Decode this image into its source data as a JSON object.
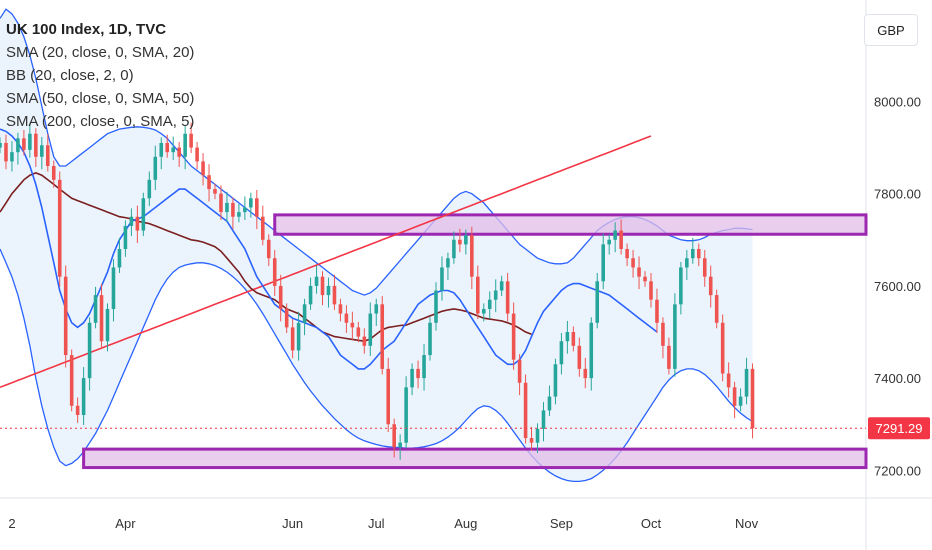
{
  "legend": {
    "title": "UK 100 Index, 1D, TVC",
    "lines": [
      "SMA (20, close, 0, SMA, 20)",
      "BB (20, close, 2, 0)",
      "SMA (50, close, 0, SMA, 50)",
      "SMA (200, close, 0, SMA, 5)"
    ]
  },
  "currency_button": "GBP",
  "chart_data": {
    "type": "candlestick",
    "title": "UK 100 Index, 1D, TVC",
    "ylim": [
      7140,
      8220
    ],
    "y_ticks": [
      {
        "value": 8000,
        "label": "8000.00"
      },
      {
        "value": 7800,
        "label": "7800.00"
      },
      {
        "value": 7600,
        "label": "7600.00"
      },
      {
        "value": 7400,
        "label": "7400.00"
      },
      {
        "value": 7200,
        "label": "7200.00"
      }
    ],
    "x_ticks": [
      {
        "label": "2",
        "index": 2
      },
      {
        "label": "Apr",
        "index": 21
      },
      {
        "label": "Jun",
        "index": 49
      },
      {
        "label": "Jul",
        "index": 63
      },
      {
        "label": "Aug",
        "index": 78
      },
      {
        "label": "Sep",
        "index": 94
      },
      {
        "label": "Oct",
        "index": 109
      },
      {
        "label": "Nov",
        "index": 125
      }
    ],
    "x_range": [
      0,
      145
    ],
    "last_price": {
      "value": 7291.29,
      "label": "7291.29",
      "color": "#f23645"
    },
    "colors": {
      "up": "#26a69a",
      "down": "#ef5350",
      "sma20": "#2962ff",
      "sma50": "#7b1f1f",
      "sma200": "#f23645",
      "bb": "#2962ff",
      "bb_fill": "#e3f0fc",
      "zone": "#9c27b0",
      "zone_fill": "#e1bee7"
    },
    "zones": [
      {
        "x_start": 46,
        "y_low": 7712,
        "y_high": 7754
      },
      {
        "x_start": 14,
        "y_low": 7206,
        "y_high": 7246
      }
    ],
    "close": [
      7910,
      7870,
      7890,
      7920,
      7895,
      7930,
      7880,
      7905,
      7860,
      7830,
      7620,
      7450,
      7340,
      7320,
      7400,
      7520,
      7580,
      7480,
      7550,
      7640,
      7680,
      7730,
      7750,
      7720,
      7790,
      7830,
      7880,
      7910,
      7890,
      7900,
      7880,
      7930,
      7900,
      7870,
      7840,
      7810,
      7800,
      7760,
      7780,
      7750,
      7760,
      7770,
      7790,
      7750,
      7700,
      7660,
      7600,
      7550,
      7510,
      7460,
      7520,
      7560,
      7600,
      7620,
      7580,
      7600,
      7560,
      7540,
      7520,
      7510,
      7490,
      7470,
      7540,
      7560,
      7420,
      7300,
      7250,
      7260,
      7380,
      7420,
      7400,
      7450,
      7520,
      7590,
      7640,
      7660,
      7700,
      7690,
      7710,
      7620,
      7540,
      7550,
      7570,
      7590,
      7610,
      7540,
      7440,
      7390,
      7270,
      7260,
      7290,
      7330,
      7360,
      7430,
      7480,
      7500,
      7470,
      7420,
      7400,
      7520,
      7610,
      7690,
      7700,
      7720,
      7680,
      7660,
      7640,
      7620,
      7610,
      7570,
      7520,
      7470,
      7420,
      7560,
      7640,
      7660,
      7680,
      7660,
      7620,
      7580,
      7520,
      7410,
      7380,
      7340,
      7360,
      7420,
      7291.29
    ],
    "sma20": [
      7940,
      7935,
      7925,
      7910,
      7890,
      7860,
      7820,
      7770,
      7710,
      7650,
      7590,
      7550,
      7520,
      7510,
      7520,
      7540,
      7570,
      7600,
      7630,
      7670,
      7700,
      7720,
      7740,
      7745,
      7750,
      7760,
      7770,
      7780,
      7790,
      7800,
      7810,
      7810,
      7800,
      7790,
      7780,
      7770,
      7760,
      7750,
      7740,
      7720,
      7700,
      7680,
      7650,
      7620,
      7600,
      7580,
      7560,
      7550,
      7540,
      7530,
      7525,
      7520,
      7515,
      7510,
      7500,
      7490,
      7470,
      7450,
      7440,
      7430,
      7420,
      7420,
      7430,
      7445,
      7460,
      7470,
      7480,
      7500,
      7520,
      7540,
      7560,
      7570,
      7580,
      7585,
      7590,
      7590,
      7585,
      7570,
      7550,
      7530,
      7510,
      7490,
      7470,
      7450,
      7440,
      7430,
      7430,
      7440,
      7460,
      7490,
      7520,
      7545,
      7560,
      7575,
      7590,
      7600,
      7605,
      7605,
      7600,
      7595,
      7590,
      7585,
      7580,
      7570,
      7560,
      7550,
      7540,
      7530,
      7520,
      7510,
      7500
    ],
    "sma50": [
      7760,
      7780,
      7800,
      7815,
      7830,
      7840,
      7845,
      7840,
      7830,
      7820,
      7810,
      7800,
      7790,
      7785,
      7780,
      7775,
      7770,
      7765,
      7760,
      7755,
      7750,
      7748,
      7745,
      7740,
      7738,
      7735,
      7730,
      7725,
      7720,
      7715,
      7710,
      7705,
      7700,
      7698,
      7695,
      7690,
      7685,
      7675,
      7660,
      7645,
      7630,
      7610,
      7595,
      7585,
      7580,
      7575,
      7570,
      7560,
      7550,
      7545,
      7540,
      7530,
      7520,
      7510,
      7500,
      7495,
      7490,
      7488,
      7486,
      7484,
      7482,
      7480,
      7485,
      7495,
      7505,
      7510,
      7512,
      7514,
      7515,
      7520,
      7525,
      7530,
      7535,
      7540,
      7545,
      7548,
      7550,
      7548,
      7545,
      7540,
      7535,
      7530,
      7528,
      7526,
      7524,
      7520,
      7515,
      7508,
      7500,
      7495
    ],
    "sma200": [
      7380,
      7385,
      7390,
      7395,
      7400,
      7405,
      7410,
      7415,
      7420,
      7425,
      7430,
      7435,
      7440,
      7445,
      7450,
      7455,
      7460,
      7465,
      7470,
      7475,
      7480,
      7485,
      7490,
      7495,
      7500,
      7505,
      7510,
      7515,
      7520,
      7525,
      7530,
      7535,
      7540,
      7545,
      7550,
      7555,
      7560,
      7565,
      7570,
      7575,
      7580,
      7585,
      7590,
      7595,
      7600,
      7605,
      7610,
      7615,
      7620,
      7625,
      7630,
      7635,
      7640,
      7645,
      7650,
      7655,
      7660,
      7665,
      7670,
      7675,
      7680,
      7685,
      7690,
      7695,
      7700,
      7705,
      7710,
      7715,
      7720,
      7725,
      7730,
      7735,
      7740,
      7745,
      7750,
      7755,
      7760,
      7765,
      7770,
      7775,
      7780,
      7785,
      7790,
      7795,
      7800,
      7805,
      7810,
      7815,
      7820,
      7825,
      7830,
      7835,
      7840,
      7845,
      7850,
      7855,
      7860,
      7865,
      7870,
      7875,
      7880,
      7885,
      7890,
      7895,
      7900,
      7905,
      7910,
      7915,
      7920,
      7925
    ],
    "bb_upper": [
      8180,
      8200,
      8190,
      8170,
      8140,
      8100,
      8050,
      7990,
      7930,
      7880,
      7860,
      7860,
      7870,
      7880,
      7890,
      7900,
      7910,
      7920,
      7930,
      7935,
      7940,
      7942,
      7944,
      7945,
      7944,
      7942,
      7938,
      7930,
      7920,
      7905,
      7890,
      7875,
      7860,
      7850,
      7840,
      7830,
      7820,
      7810,
      7800,
      7790,
      7780,
      7770,
      7760,
      7750,
      7740,
      7730,
      7720,
      7710,
      7700,
      7690,
      7680,
      7670,
      7660,
      7650,
      7640,
      7630,
      7620,
      7610,
      7600,
      7590,
      7585,
      7580,
      7585,
      7595,
      7610,
      7625,
      7640,
      7655,
      7670,
      7685,
      7700,
      7715,
      7730,
      7745,
      7760,
      7775,
      7790,
      7800,
      7805,
      7800,
      7790,
      7780,
      7765,
      7750,
      7735,
      7720,
      7705,
      7690,
      7680,
      7670,
      7660,
      7655,
      7650,
      7648,
      7648,
      7650,
      7660,
      7675,
      7690,
      7705,
      7720,
      7730,
      7738,
      7744,
      7748,
      7750,
      7750,
      7748,
      7744,
      7738,
      7730,
      7720,
      7710,
      7705,
      7700,
      7698,
      7698,
      7700,
      7705,
      7712,
      7716,
      7720,
      7722,
      7725,
      7725,
      7724,
      7722
    ],
    "bb_lower": [
      7680,
      7650,
      7620,
      7580,
      7530,
      7470,
      7400,
      7340,
      7290,
      7250,
      7220,
      7210,
      7215,
      7225,
      7240,
      7260,
      7280,
      7305,
      7330,
      7360,
      7390,
      7420,
      7450,
      7480,
      7510,
      7540,
      7570,
      7595,
      7615,
      7630,
      7640,
      7645,
      7648,
      7650,
      7650,
      7648,
      7644,
      7638,
      7630,
      7620,
      7608,
      7594,
      7578,
      7560,
      7540,
      7518,
      7496,
      7474,
      7452,
      7430,
      7410,
      7390,
      7372,
      7356,
      7340,
      7326,
      7312,
      7300,
      7288,
      7278,
      7270,
      7264,
      7260,
      7256,
      7253,
      7251,
      7250,
      7249,
      7248,
      7248,
      7249,
      7251,
      7254,
      7258,
      7264,
      7272,
      7282,
      7294,
      7308,
      7322,
      7334,
      7340,
      7338,
      7330,
      7318,
      7302,
      7284,
      7266,
      7248,
      7232,
      7218,
      7206,
      7196,
      7188,
      7182,
      7178,
      7176,
      7176,
      7178,
      7182,
      7190,
      7200,
      7212,
      7226,
      7242,
      7260,
      7280,
      7300,
      7320,
      7340,
      7360,
      7380,
      7396,
      7408,
      7416,
      7420,
      7420,
      7416,
      7408,
      7396,
      7382,
      7366,
      7350,
      7336,
      7324,
      7314,
      7306
    ]
  }
}
